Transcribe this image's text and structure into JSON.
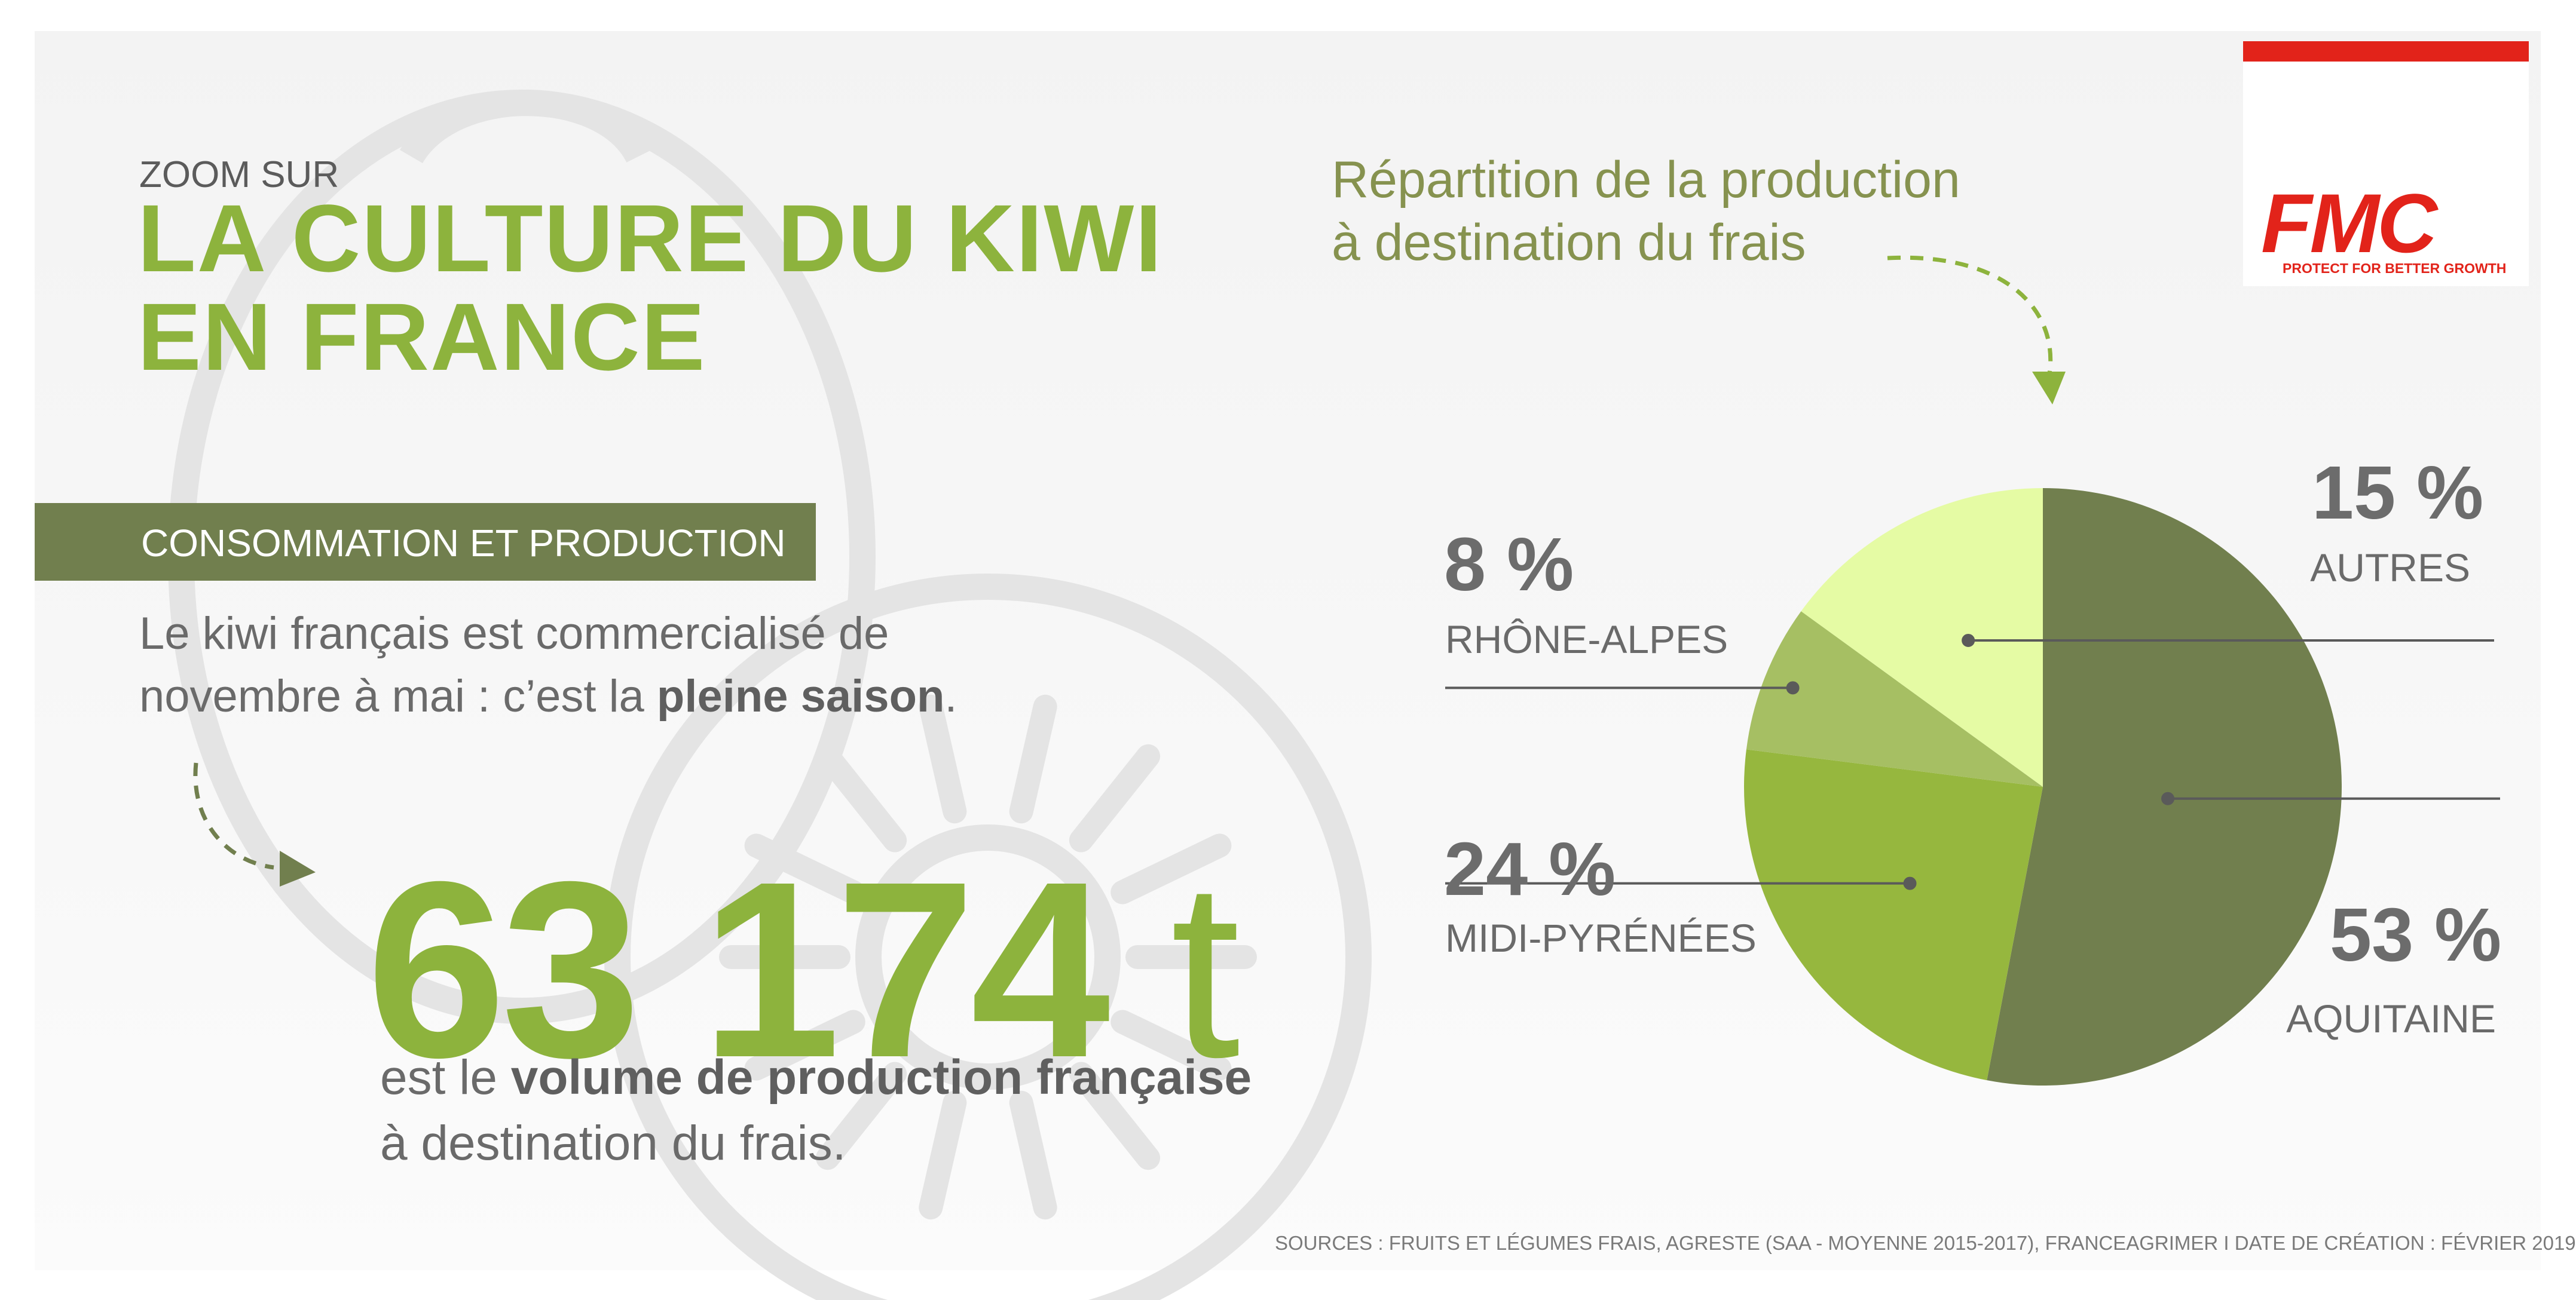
{
  "header": {
    "kicker": "ZOOM SUR",
    "title_line1": "LA CULTURE DU KIWI",
    "title_line2": "EN FRANCE"
  },
  "logo": {
    "brand": "FMC",
    "tagline": "PROTECT FOR BETTER GROWTH",
    "color": "#e2231a"
  },
  "section": {
    "label": "CONSOMMATION ET PRODUCTION"
  },
  "intro": {
    "line1": "Le kiwi français est commercialisé de",
    "line2_prefix": "novembre à mai : c’est la ",
    "line2_bold": "pleine saison",
    "line2_suffix": "."
  },
  "headline": {
    "number": "63 174",
    "unit": "t",
    "caption1_prefix": "est le ",
    "caption1_bold": "volume de production française",
    "caption2": "à destination du frais."
  },
  "chart_data": {
    "type": "pie",
    "title_line1": "Répartition de la production",
    "title_line2": "à destination du frais",
    "slices": [
      {
        "label": "AQUITAINE",
        "value": 53,
        "display": "53 %",
        "color": "#717f4e"
      },
      {
        "label": "MIDI-PYRÉNÉES",
        "value": 24,
        "display": "24 %",
        "color": "#96b73e"
      },
      {
        "label": "RHÔNE-ALPES",
        "value": 8,
        "display": "8 %",
        "color": "#a6bf63"
      },
      {
        "label": "AUTRES",
        "value": 15,
        "display": "15 %",
        "color": "#e5fba4"
      }
    ]
  },
  "footer": {
    "sources": "SOURCES : FRUITS ET LÉGUMES FRAIS, AGRESTE (SAA - MOYENNE 2015-2017), FRANCEAGRIMER  I  DATE DE CRÉATION : FÉVRIER 2019"
  },
  "colors": {
    "accent_green": "#8db33d",
    "band_green": "#717f4e",
    "text_gray": "#6a6a6a"
  }
}
